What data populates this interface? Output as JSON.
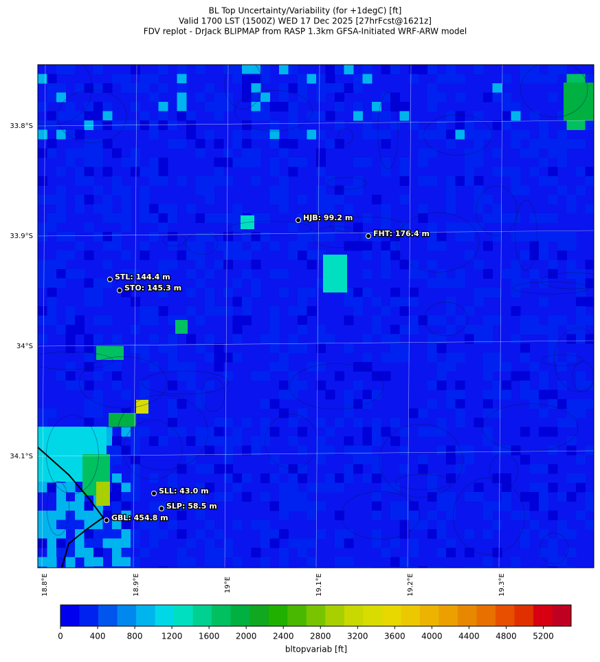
{
  "header": {
    "title_lines": [
      "BL Top Uncertainty/Variability (for +1degC) [ft]",
      "Valid 1700 LST (1500Z) WED 17 Dec 2025 [27hrFcst@1621z]",
      "FDV replot - DrJack BLIPMAP from RASP 1.3km GFSA-Initiated WRF-ARW model"
    ]
  },
  "map": {
    "lat_labels": [
      "33.8°S",
      "33.9°S",
      "34°S",
      "34.1°S"
    ],
    "lon_labels": [
      "18.8°E",
      "18.9°E",
      "19°E",
      "19.1°E",
      "19.2°E",
      "19.3°E"
    ],
    "stations": [
      {
        "label": "HJB: 99.2 m"
      },
      {
        "label": "FHT: 176.4 m"
      },
      {
        "label": "STL: 144.4 m"
      },
      {
        "label": "STO: 145.3 m"
      },
      {
        "label": "SLL: 43.0 m"
      },
      {
        "label": "SLP: 58.5 m"
      },
      {
        "label": "GBL: 454.8 m"
      }
    ]
  },
  "colorbar": {
    "label": "bltopvariab [ft]",
    "range": [
      0,
      5500
    ],
    "ticks": [
      0,
      400,
      800,
      1200,
      1600,
      2000,
      2400,
      2800,
      3200,
      3600,
      4000,
      4400,
      4800,
      5200
    ],
    "colors": [
      "#0000ee",
      "#0022f0",
      "#0055ee",
      "#0088ee",
      "#00b4ee",
      "#00d8e8",
      "#00e0c0",
      "#00d090",
      "#00c060",
      "#00b040",
      "#10a820",
      "#20b000",
      "#48b800",
      "#78c400",
      "#a8d000",
      "#c8d800",
      "#d8dc00",
      "#e8d800",
      "#ecc800",
      "#ecb400",
      "#eca000",
      "#e88800",
      "#e87000",
      "#e85000",
      "#e03000",
      "#d80010",
      "#c00020"
    ]
  }
}
